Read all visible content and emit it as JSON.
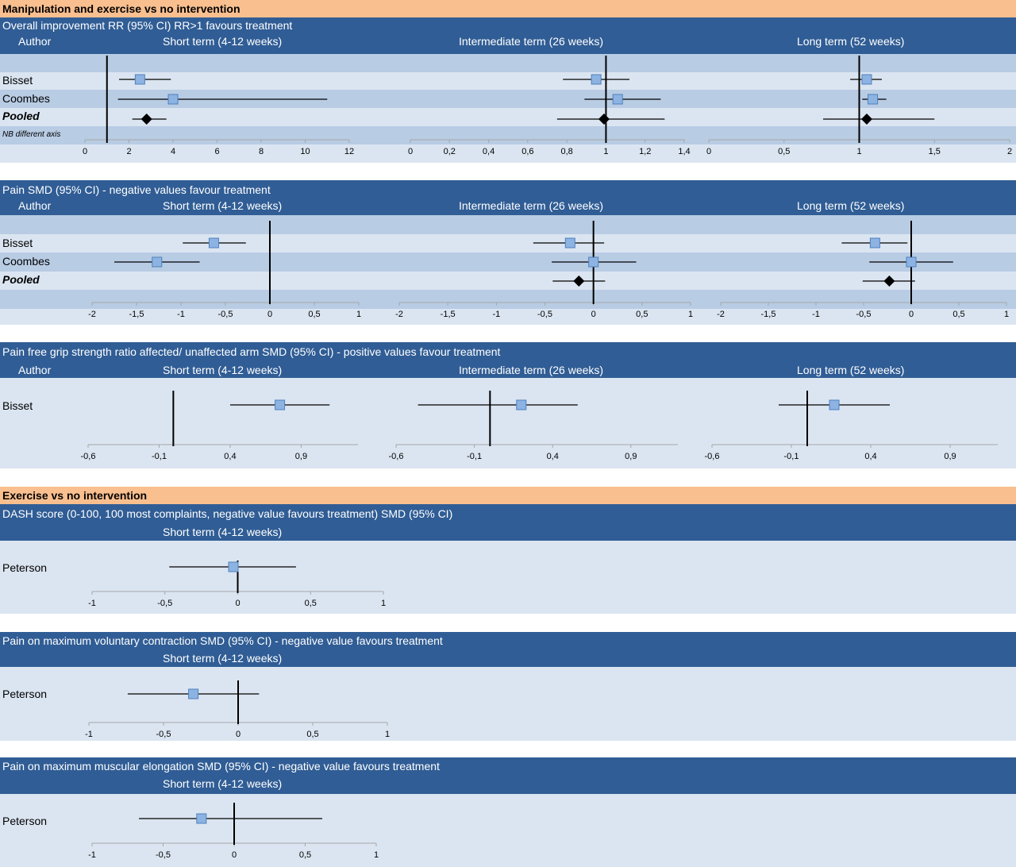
{
  "sections": [
    {
      "title": "Manipulation and exercise vs no intervention"
    },
    {
      "title": "Exercise vs no intervention"
    }
  ],
  "charts": [
    {
      "title": "Overall improvement RR (95% CI) RR>1 favours treatment",
      "author_header": "Author",
      "column_headers": [
        "Short term (4-12 weeks)",
        "Intermediate term (26 weeks)",
        "Long term (52 weeks)"
      ],
      "rows": [
        "Bisset",
        "Coombes",
        "Pooled"
      ],
      "note": "NB different axis"
    },
    {
      "title": "Pain SMD (95% CI) - negative values favour treatment",
      "author_header": "Author",
      "column_headers": [
        "Short term (4-12 weeks)",
        "Intermediate term (26 weeks)",
        "Long term (52 weeks)"
      ],
      "rows": [
        "Bisset",
        "Coombes",
        "Pooled"
      ]
    },
    {
      "title": "Pain free grip strength ratio affected/ unaffected arm SMD (95% CI) - positive values favour treatment",
      "author_header": "Author",
      "column_headers": [
        "Short term (4-12 weeks)",
        "Intermediate term (26 weeks)",
        "Long term (52 weeks)"
      ],
      "rows": [
        "Bisset"
      ]
    },
    {
      "title": "DASH score (0-100, 100 most complaints, negative value favours treatment) SMD (95% CI)",
      "column_headers": [
        "Short term (4-12 weeks)"
      ],
      "rows": [
        "Peterson"
      ]
    },
    {
      "title": "Pain on maximum voluntary contraction SMD (95% CI) - negative value favours treatment",
      "column_headers": [
        "Short term (4-12 weeks)"
      ],
      "rows": [
        "Peterson"
      ]
    },
    {
      "title": "Pain on maximum muscular elongation SMD (95% CI) - negative value favours treatment",
      "column_headers": [
        "Short term (4-12 weeks)"
      ],
      "rows": [
        "Peterson"
      ]
    }
  ],
  "chart_data": [
    {
      "type": "scatter",
      "title": "Overall improvement RR (95% CI) RR>1 favours treatment",
      "subplots": [
        {
          "name": "Short term (4-12 weeks)",
          "xlim": [
            0,
            12
          ],
          "ref": 1,
          "ticks": [
            0,
            2,
            4,
            6,
            8,
            10,
            12
          ],
          "tick_labels": [
            "0",
            "2",
            "4",
            "6",
            "8",
            "10",
            "12"
          ],
          "points": [
            {
              "study": "Bisset",
              "est": 2.5,
              "lo": 1.55,
              "hi": 3.9,
              "marker": "square"
            },
            {
              "study": "Coombes",
              "est": 4.0,
              "lo": 1.5,
              "hi": 11.0,
              "marker": "square"
            },
            {
              "study": "Pooled",
              "est": 2.8,
              "lo": 2.15,
              "hi": 3.7,
              "marker": "diamond"
            }
          ]
        },
        {
          "name": "Intermediate term (26 weeks)",
          "xlim": [
            0,
            1.4
          ],
          "ref": 1,
          "ticks": [
            0,
            0.2,
            0.4,
            0.6,
            0.8,
            1,
            1.2,
            1.4
          ],
          "tick_labels": [
            "0",
            "0,2",
            "0,4",
            "0,6",
            "0,8",
            "1",
            "1,2",
            "1,4"
          ],
          "points": [
            {
              "study": "Bisset",
              "est": 0.95,
              "lo": 0.78,
              "hi": 1.12,
              "marker": "square"
            },
            {
              "study": "Coombes",
              "est": 1.06,
              "lo": 0.89,
              "hi": 1.28,
              "marker": "square"
            },
            {
              "study": "Pooled",
              "est": 0.99,
              "lo": 0.75,
              "hi": 1.3,
              "marker": "diamond"
            }
          ]
        },
        {
          "name": "Long term (52 weeks)",
          "xlim": [
            0,
            2
          ],
          "ref": 1,
          "ticks": [
            0,
            0.5,
            1,
            1.5,
            2
          ],
          "tick_labels": [
            "0",
            "0,5",
            "1",
            "1,5",
            "2"
          ],
          "points": [
            {
              "study": "Bisset",
              "est": 1.05,
              "lo": 0.94,
              "hi": 1.15,
              "marker": "square"
            },
            {
              "study": "Coombes",
              "est": 1.09,
              "lo": 1.02,
              "hi": 1.18,
              "marker": "square"
            },
            {
              "study": "Pooled",
              "est": 1.05,
              "lo": 0.76,
              "hi": 1.5,
              "marker": "diamond"
            }
          ]
        }
      ]
    },
    {
      "type": "scatter",
      "title": "Pain SMD (95% CI) - negative values favour treatment",
      "subplots": [
        {
          "name": "Short term (4-12 weeks)",
          "xlim": [
            -2,
            1
          ],
          "ref": 0,
          "ticks": [
            -2,
            -1.5,
            -1,
            -0.5,
            0,
            0.5,
            1
          ],
          "tick_labels": [
            "-2",
            "-1,5",
            "-1",
            "-0,5",
            "0",
            "0,5",
            "1"
          ],
          "points": [
            {
              "study": "Bisset",
              "est": -0.63,
              "lo": -0.98,
              "hi": -0.27,
              "marker": "square"
            },
            {
              "study": "Coombes",
              "est": -1.27,
              "lo": -1.75,
              "hi": -0.79,
              "marker": "square"
            }
          ]
        },
        {
          "name": "Intermediate term (26 weeks)",
          "xlim": [
            -2,
            1
          ],
          "ref": 0,
          "ticks": [
            -2,
            -1.5,
            -1,
            -0.5,
            0,
            0.5,
            1
          ],
          "tick_labels": [
            "-2",
            "-1,5",
            "-1",
            "-0,5",
            "0",
            "0,5",
            "1"
          ],
          "points": [
            {
              "study": "Bisset",
              "est": -0.24,
              "lo": -0.62,
              "hi": 0.11,
              "marker": "square"
            },
            {
              "study": "Coombes",
              "est": 0.0,
              "lo": -0.43,
              "hi": 0.44,
              "marker": "square"
            },
            {
              "study": "Pooled",
              "est": -0.15,
              "lo": -0.42,
              "hi": 0.12,
              "marker": "diamond"
            }
          ]
        },
        {
          "name": "Long term (52 weeks)",
          "xlim": [
            -2,
            1
          ],
          "ref": 0,
          "ticks": [
            -2,
            -1.5,
            -1,
            -0.5,
            0,
            0.5,
            1
          ],
          "tick_labels": [
            "-2",
            "-1,5",
            "-1",
            "-0,5",
            "0",
            "0,5",
            "1"
          ],
          "points": [
            {
              "study": "Bisset",
              "est": -0.38,
              "lo": -0.73,
              "hi": -0.04,
              "marker": "square"
            },
            {
              "study": "Coombes",
              "est": 0.0,
              "lo": -0.44,
              "hi": 0.44,
              "marker": "square"
            },
            {
              "study": "Pooled",
              "est": -0.23,
              "lo": -0.51,
              "hi": 0.04,
              "marker": "diamond"
            }
          ]
        }
      ]
    },
    {
      "type": "scatter",
      "title": "Pain free grip strength ratio affected/ unaffected arm SMD (95% CI) - positive values favour treatment",
      "subplots": [
        {
          "name": "Short term (4-12 weeks)",
          "xlim": [
            -0.6,
            1.3
          ],
          "ref": 0,
          "ticks": [
            -0.6,
            -0.1,
            0.4,
            0.9
          ],
          "tick_labels": [
            "-0,6",
            "-0,1",
            "0,4",
            "0,9"
          ],
          "points": [
            {
              "study": "Bisset",
              "est": 0.75,
              "lo": 0.4,
              "hi": 1.1,
              "marker": "square"
            }
          ]
        },
        {
          "name": "Intermediate term (26 weeks)",
          "xlim": [
            -0.6,
            1.2
          ],
          "ref": 0,
          "ticks": [
            -0.6,
            -0.1,
            0.4,
            0.9
          ],
          "tick_labels": [
            "-0,6",
            "-0,1",
            "0,4",
            "0,9"
          ],
          "points": [
            {
              "study": "Bisset",
              "est": 0.2,
              "lo": -0.46,
              "hi": 0.56,
              "marker": "square"
            }
          ]
        },
        {
          "name": "Long term (52 weeks)",
          "xlim": [
            -0.6,
            1.2
          ],
          "ref": 0,
          "ticks": [
            -0.6,
            -0.1,
            0.4,
            0.9
          ],
          "tick_labels": [
            "-0,6",
            "-0,1",
            "0,4",
            "0,9"
          ],
          "points": [
            {
              "study": "Bisset",
              "est": 0.17,
              "lo": -0.18,
              "hi": 0.52,
              "marker": "square"
            }
          ]
        }
      ]
    },
    {
      "type": "scatter",
      "title": "DASH score (0-100, 100 most complaints, negative value favours treatment) SMD (95% CI)",
      "subplots": [
        {
          "name": "Short term (4-12 weeks)",
          "xlim": [
            -1,
            1
          ],
          "ref": 0,
          "ticks": [
            -1,
            -0.5,
            0,
            0.5,
            1
          ],
          "tick_labels": [
            "-1",
            "-0,5",
            "0",
            "0,5",
            "1"
          ],
          "points": [
            {
              "study": "Peterson",
              "est": -0.03,
              "lo": -0.47,
              "hi": 0.4,
              "marker": "square"
            }
          ]
        }
      ]
    },
    {
      "type": "scatter",
      "title": "Pain on maximum voluntary contraction SMD (95% CI) - negative value favours treatment",
      "subplots": [
        {
          "name": "Short term (4-12 weeks)",
          "xlim": [
            -1,
            1
          ],
          "ref": 0,
          "ticks": [
            -1,
            -0.5,
            0,
            0.5,
            1
          ],
          "tick_labels": [
            "-1",
            "-0,5",
            "0",
            "0,5",
            "1"
          ],
          "points": [
            {
              "study": "Peterson",
              "est": -0.3,
              "lo": -0.74,
              "hi": 0.14,
              "marker": "square"
            }
          ]
        }
      ]
    },
    {
      "type": "scatter",
      "title": "Pain on maximum muscular elongation SMD (95% CI) - negative value favours treatment",
      "subplots": [
        {
          "name": "Short term (4-12 weeks)",
          "xlim": [
            -1,
            1
          ],
          "ref": 0,
          "ticks": [
            -1,
            -0.5,
            0,
            0.5,
            1
          ],
          "tick_labels": [
            "-1",
            "-0,5",
            "0",
            "0,5",
            "1"
          ],
          "points": [
            {
              "study": "Peterson",
              "est": -0.23,
              "lo": -0.67,
              "hi": 0.62,
              "marker": "square"
            }
          ]
        }
      ]
    }
  ],
  "colors": {
    "section_band": "#f9bf8f",
    "header_band": "#305d95",
    "panel_light": "#dbe5f1",
    "panel_stripe": "#b8cce4",
    "estimate_marker": "#8db3e2",
    "pooled_marker": "#000000"
  }
}
